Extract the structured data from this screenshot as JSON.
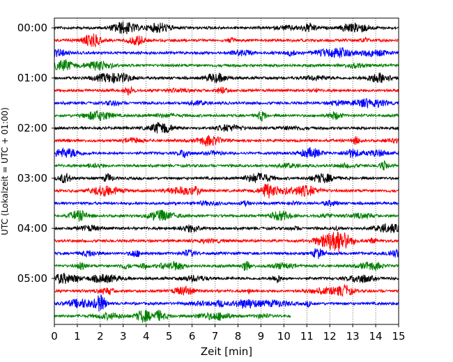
{
  "chart_data": {
    "type": "line",
    "title": "",
    "xlabel": "Zeit  [min]",
    "ylabel": "UTC (Lokalzeit = UTC + 01:00)",
    "xlim": [
      0,
      15
    ],
    "x_ticks": [
      "0",
      "1",
      "2",
      "3",
      "4",
      "5",
      "6",
      "7",
      "8",
      "9",
      "10",
      "11",
      "12",
      "13",
      "14",
      "15"
    ],
    "y_tick_labels": [
      "00:00",
      "01:00",
      "02:00",
      "03:00",
      "04:00",
      "05:00"
    ],
    "grid": "vertical-dotted",
    "trace_interval_minutes": 15,
    "trace_colors": [
      "#000000",
      "#ff0000",
      "#0000ff",
      "#008000"
    ],
    "traces": [
      {
        "start": "00:00",
        "end_min": 15,
        "color": "#000000"
      },
      {
        "start": "00:15",
        "end_min": 15,
        "color": "#ff0000"
      },
      {
        "start": "00:30",
        "end_min": 15,
        "color": "#0000ff"
      },
      {
        "start": "00:45",
        "end_min": 15,
        "color": "#008000"
      },
      {
        "start": "01:00",
        "end_min": 15,
        "color": "#000000"
      },
      {
        "start": "01:15",
        "end_min": 15,
        "color": "#ff0000"
      },
      {
        "start": "01:30",
        "end_min": 15,
        "color": "#0000ff"
      },
      {
        "start": "01:45",
        "end_min": 15,
        "color": "#008000"
      },
      {
        "start": "02:00",
        "end_min": 15,
        "color": "#000000"
      },
      {
        "start": "02:15",
        "end_min": 15,
        "color": "#ff0000"
      },
      {
        "start": "02:30",
        "end_min": 15,
        "color": "#0000ff"
      },
      {
        "start": "02:45",
        "end_min": 15,
        "color": "#008000"
      },
      {
        "start": "03:00",
        "end_min": 15,
        "color": "#000000"
      },
      {
        "start": "03:15",
        "end_min": 15,
        "color": "#ff0000"
      },
      {
        "start": "03:30",
        "end_min": 15,
        "color": "#0000ff"
      },
      {
        "start": "03:45",
        "end_min": 15,
        "color": "#008000"
      },
      {
        "start": "04:00",
        "end_min": 15,
        "color": "#000000"
      },
      {
        "start": "04:15",
        "end_min": 15,
        "color": "#ff0000"
      },
      {
        "start": "04:30",
        "end_min": 15,
        "color": "#0000ff"
      },
      {
        "start": "04:45",
        "end_min": 15,
        "color": "#008000"
      },
      {
        "start": "05:00",
        "end_min": 15,
        "color": "#000000"
      },
      {
        "start": "05:15",
        "end_min": 15,
        "color": "#ff0000"
      },
      {
        "start": "05:30",
        "end_min": 15,
        "color": "#0000ff"
      },
      {
        "start": "05:45",
        "end_min": 10.3,
        "color": "#008000"
      }
    ]
  }
}
